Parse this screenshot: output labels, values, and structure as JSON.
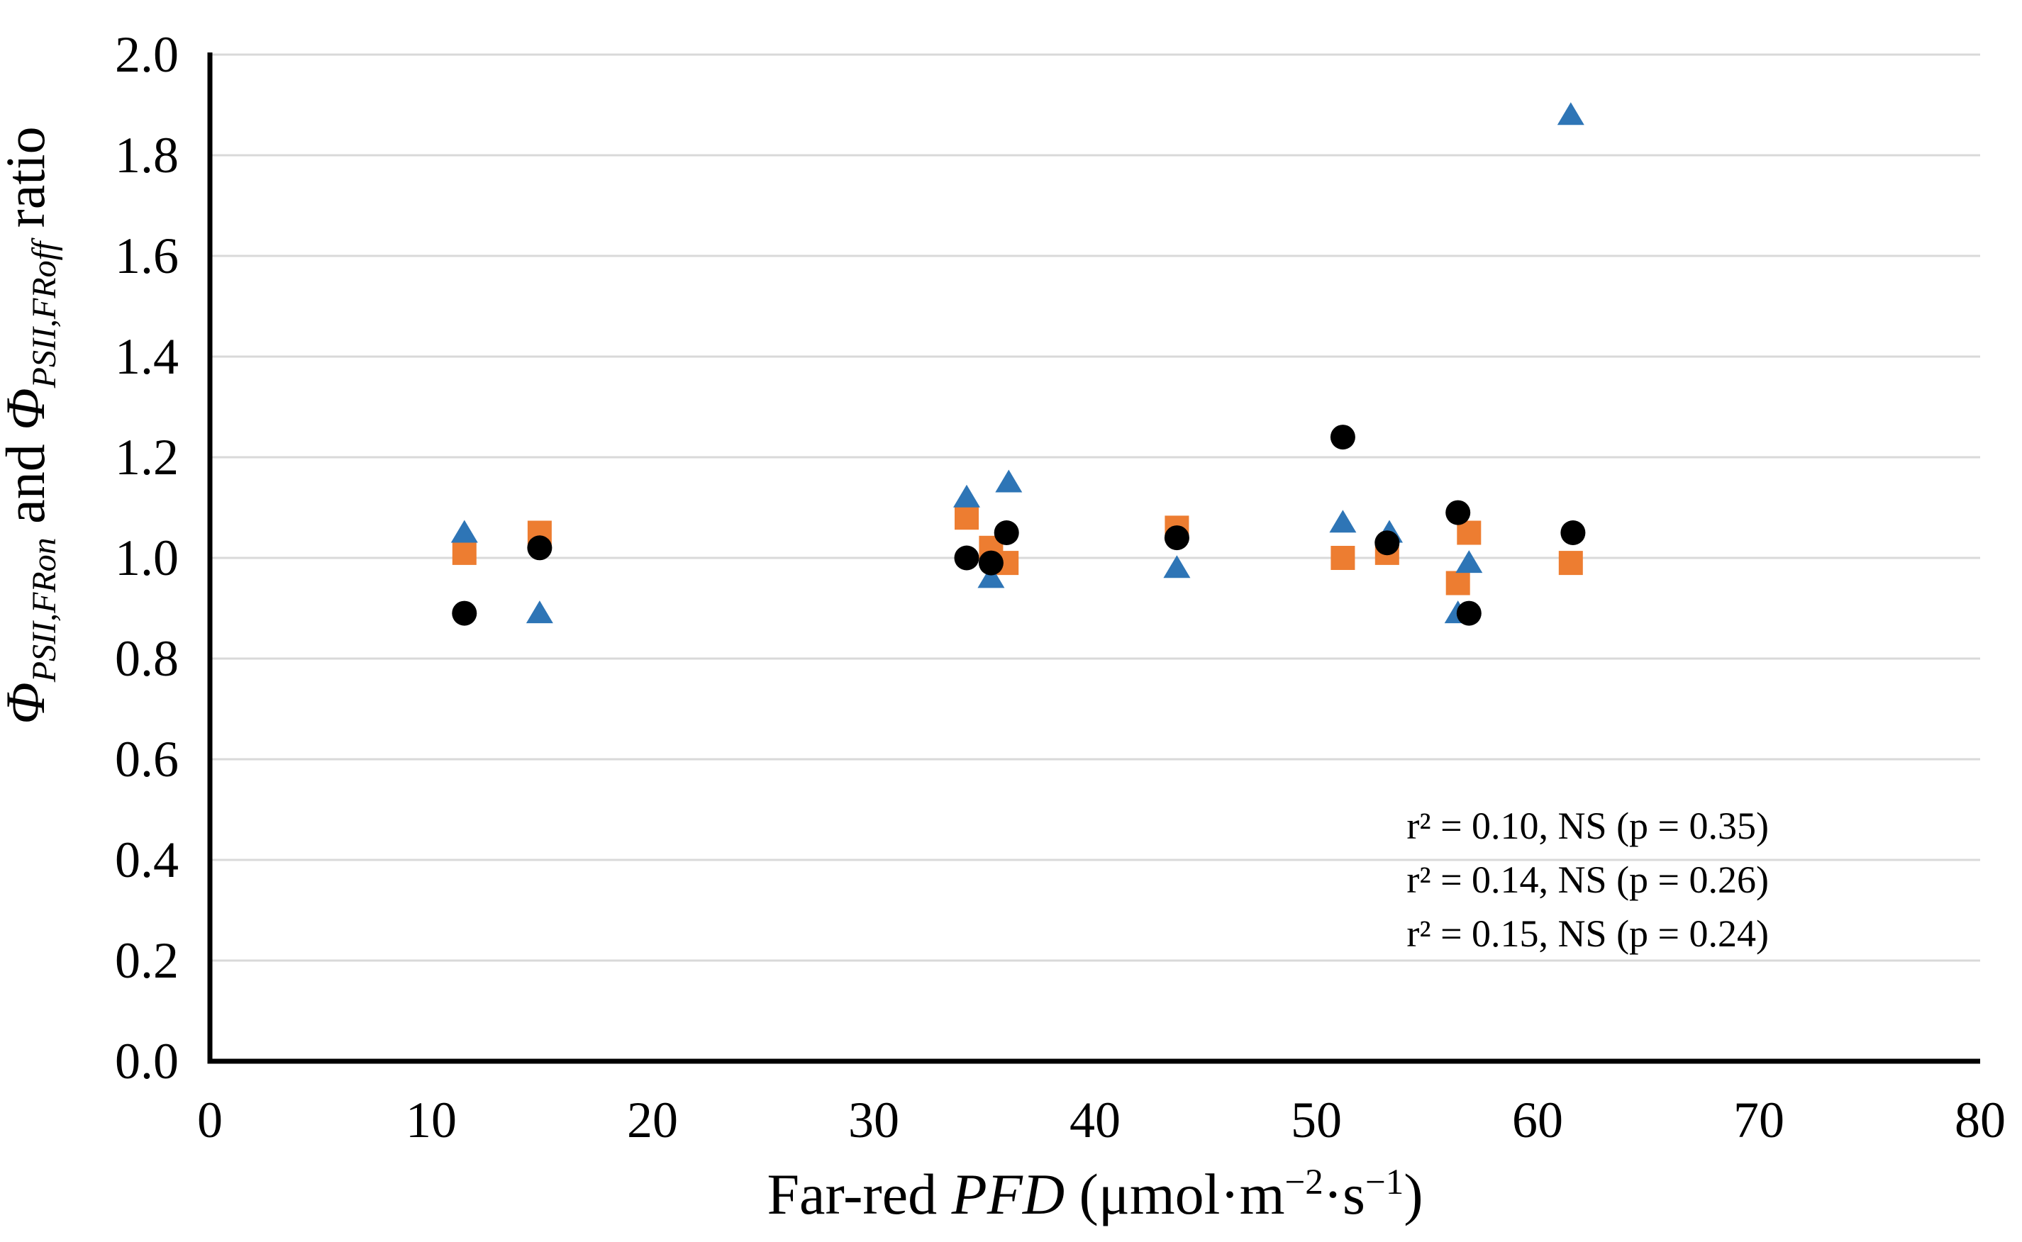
{
  "chart_data": {
    "type": "scatter",
    "title": "",
    "xlabel": "Far-red PFD (μmol·m⁻²·s⁻¹)",
    "ylabel": "ΦPSII,FRon and ΦPSII,FRoff ratio",
    "xlabel_segments": [
      {
        "t": "Far-red ",
        "style": "plain"
      },
      {
        "t": "PFD",
        "style": "italic"
      },
      {
        "t": " (μmol·m",
        "style": "plain"
      },
      {
        "t": "−2",
        "style": "sup"
      },
      {
        "t": "·s",
        "style": "plain"
      },
      {
        "t": "−1",
        "style": "sup"
      },
      {
        "t": ")",
        "style": "plain"
      }
    ],
    "ylabel_segments": [
      {
        "t": "Φ",
        "style": "italic"
      },
      {
        "t": "PSII,FRon",
        "style": "italic-sub"
      },
      {
        "t": " and ",
        "style": "plain"
      },
      {
        "t": "Φ",
        "style": "italic"
      },
      {
        "t": "PSII,FRoff",
        "style": "italic-sub"
      },
      {
        "t": " ratio",
        "style": "plain"
      }
    ],
    "x_axis": {
      "min": 0,
      "max": 80,
      "tick_labels": [
        "0",
        "10",
        "20",
        "30",
        "40",
        "50",
        "60",
        "70",
        "80"
      ]
    },
    "y_axis": {
      "min": 0.0,
      "max": 2.0,
      "tick_labels": [
        "0.0",
        "0.2",
        "0.4",
        "0.6",
        "0.8",
        "1.0",
        "1.2",
        "1.4",
        "1.6",
        "1.8",
        "2.0"
      ]
    },
    "grid": {
      "horizontal": true,
      "vertical": false,
      "color": "#d9d9d9"
    },
    "axis_color": "#000000",
    "legend": "none",
    "series": [
      {
        "name": "orange-squares",
        "marker": "square",
        "color": "#ED7D31",
        "points": [
          [
            11.5,
            1.01
          ],
          [
            14.9,
            1.05
          ],
          [
            34.2,
            1.08
          ],
          [
            35.3,
            1.02
          ],
          [
            36.0,
            0.99
          ],
          [
            43.7,
            1.06
          ],
          [
            51.2,
            1.0
          ],
          [
            53.2,
            1.01
          ],
          [
            56.4,
            0.95
          ],
          [
            56.9,
            1.05
          ],
          [
            61.5,
            0.99
          ]
        ]
      },
      {
        "name": "blue-triangles",
        "marker": "triangle",
        "color": "#2E75B6",
        "points": [
          [
            11.5,
            1.05
          ],
          [
            14.9,
            0.89
          ],
          [
            34.2,
            1.12
          ],
          [
            35.3,
            0.96
          ],
          [
            36.1,
            1.15
          ],
          [
            43.7,
            0.98
          ],
          [
            51.2,
            1.07
          ],
          [
            53.3,
            1.05
          ],
          [
            56.4,
            0.89
          ],
          [
            56.9,
            0.99
          ],
          [
            61.5,
            1.88
          ]
        ]
      },
      {
        "name": "black-circles",
        "marker": "circle",
        "color": "#000000",
        "points": [
          [
            11.5,
            0.89
          ],
          [
            14.9,
            1.02
          ],
          [
            34.2,
            1.0
          ],
          [
            35.3,
            0.99
          ],
          [
            36.0,
            1.05
          ],
          [
            43.7,
            1.04
          ],
          [
            51.2,
            1.24
          ],
          [
            53.2,
            1.03
          ],
          [
            56.4,
            1.09
          ],
          [
            56.9,
            0.89
          ],
          [
            61.6,
            1.05
          ]
        ]
      }
    ],
    "annotations": [
      {
        "text": "r² = 0.10, NS (p = 0.35)",
        "color": "#F25C19",
        "position": "bottom-right"
      },
      {
        "text": "r² = 0.14, NS (p = 0.26)",
        "color": "#2E9BD5",
        "position": "bottom-right"
      },
      {
        "text": "r² = 0.15, NS (p = 0.24)",
        "color": "#000000",
        "position": "bottom-right"
      }
    ]
  }
}
